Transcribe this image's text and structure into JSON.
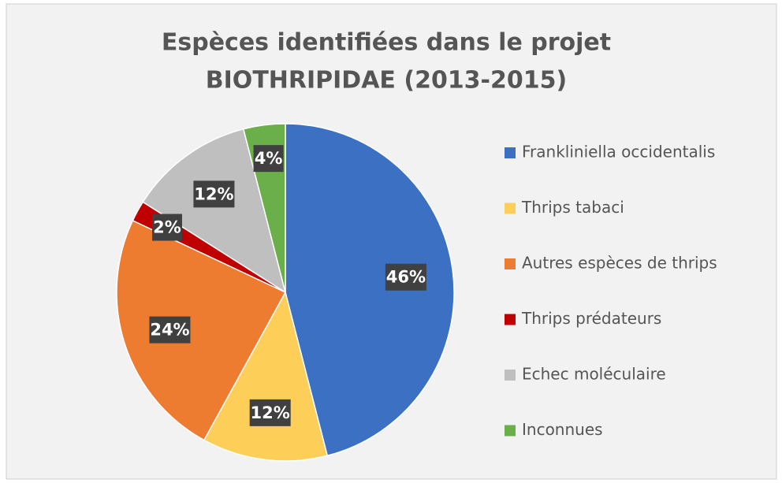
{
  "chart_data": {
    "type": "pie",
    "title": [
      "Espèces identifiées dans le projet",
      "BIOTHRIPIDAE (2013-2015)"
    ],
    "categories": [
      "Frankliniella occidentalis",
      "Thrips tabaci",
      "Autres espèces de thrips",
      "Thrips prédateurs",
      "Echec moléculaire",
      "Inconnues"
    ],
    "values": [
      46,
      12,
      24,
      2,
      12,
      4
    ],
    "value_labels": [
      "46%",
      "12%",
      "24%",
      "2%",
      "12%",
      "4%"
    ],
    "colors": [
      "#3b70c2",
      "#fdcf58",
      "#ee7c30",
      "#c00000",
      "#bfbfbf",
      "#6aaf4a"
    ],
    "legend": "right"
  }
}
